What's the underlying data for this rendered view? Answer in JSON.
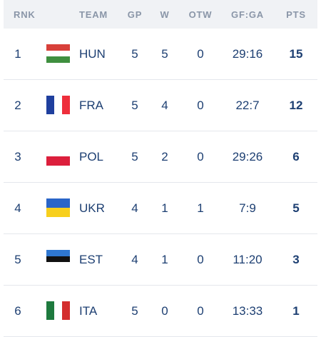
{
  "table": {
    "headers": {
      "rank": "RNK",
      "team": "TEAM",
      "gp": "GP",
      "w": "W",
      "otw": "OTW",
      "gfga": "GF:GA",
      "pts": "PTS"
    },
    "rows": [
      {
        "rank": "1",
        "team": "HUN",
        "gp": "5",
        "w": "5",
        "otw": "0",
        "gfga": "29:16",
        "pts": "15",
        "flag": "hungary-flag",
        "flag_colors": [
          "#d8403a",
          "#ffffff",
          "#3f8f3f"
        ]
      },
      {
        "rank": "2",
        "team": "FRA",
        "gp": "5",
        "w": "4",
        "otw": "0",
        "gfga": "22:7",
        "pts": "12",
        "flag": "france-flag",
        "flag_colors": [
          "#1f3f9e",
          "#ffffff",
          "#ee2e3b"
        ]
      },
      {
        "rank": "3",
        "team": "POL",
        "gp": "5",
        "w": "2",
        "otw": "0",
        "gfga": "29:26",
        "pts": "6",
        "flag": "poland-flag",
        "flag_colors": [
          "#ffffff",
          "#dc1f3c"
        ]
      },
      {
        "rank": "4",
        "team": "UKR",
        "gp": "4",
        "w": "1",
        "otw": "1",
        "gfga": "7:9",
        "pts": "5",
        "flag": "ukraine-flag",
        "flag_colors": [
          "#2a65c8",
          "#f7cf1d"
        ]
      },
      {
        "rank": "5",
        "team": "EST",
        "gp": "4",
        "w": "1",
        "otw": "0",
        "gfga": "11:20",
        "pts": "3",
        "flag": "estonia-flag",
        "flag_colors": [
          "#2f77d0",
          "#111111",
          "#ffffff"
        ]
      },
      {
        "rank": "6",
        "team": "ITA",
        "gp": "5",
        "w": "0",
        "otw": "0",
        "gfga": "13:33",
        "pts": "1",
        "flag": "italy-flag",
        "flag_colors": [
          "#1e7a3e",
          "#ffffff",
          "#d42e2e"
        ]
      }
    ]
  }
}
